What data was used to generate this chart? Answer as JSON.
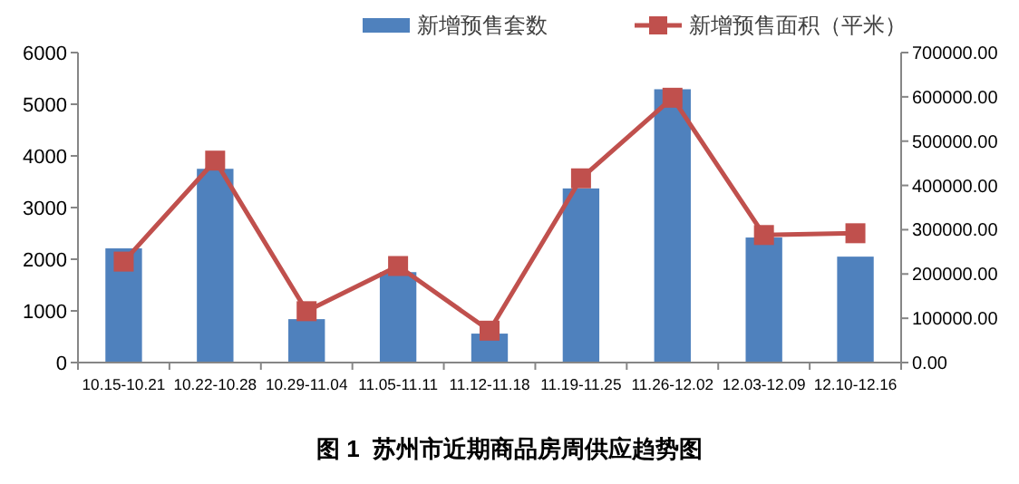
{
  "chart_data": {
    "type": "bar",
    "title": "图 1  苏州市近期商品房周供应趋势图",
    "categories": [
      "10.15-10.21",
      "10.22-10.28",
      "10.29-11.04",
      "11.05-11.11",
      "11.12-11.18",
      "11.19-11.25",
      "11.26-12.02",
      "12.03-12.09",
      "12.10-12.16"
    ],
    "series": [
      {
        "name": "新增预售套数",
        "color": "#4f81bd",
        "values": [
          2210,
          3750,
          840,
          1750,
          560,
          3370,
          5290,
          2420,
          2050
        ]
      },
      {
        "name": "新增预售面积（平米）",
        "type": "line",
        "axis": "y2",
        "color": "#c0504d",
        "marker": "square",
        "values": [
          228000,
          456000,
          116000,
          218000,
          72000,
          416000,
          598000,
          288000,
          292000
        ]
      }
    ],
    "ylim": [
      0,
      6000
    ],
    "yticks": [
      0,
      1000,
      2000,
      3000,
      4000,
      5000,
      6000
    ],
    "y2lim": [
      0,
      700000
    ],
    "y2ticks": [
      {
        "value": 0,
        "label": "0.00"
      },
      {
        "value": 100000,
        "label": "100000.00"
      },
      {
        "value": 200000,
        "label": "200000.00"
      },
      {
        "value": 300000,
        "label": "300000.00"
      },
      {
        "value": 400000,
        "label": "400000.00"
      },
      {
        "value": 500000,
        "label": "500000.00"
      },
      {
        "value": 600000,
        "label": "600000.00"
      },
      {
        "value": 700000,
        "label": "700000.00"
      }
    ],
    "legend": "top",
    "grid": false
  }
}
